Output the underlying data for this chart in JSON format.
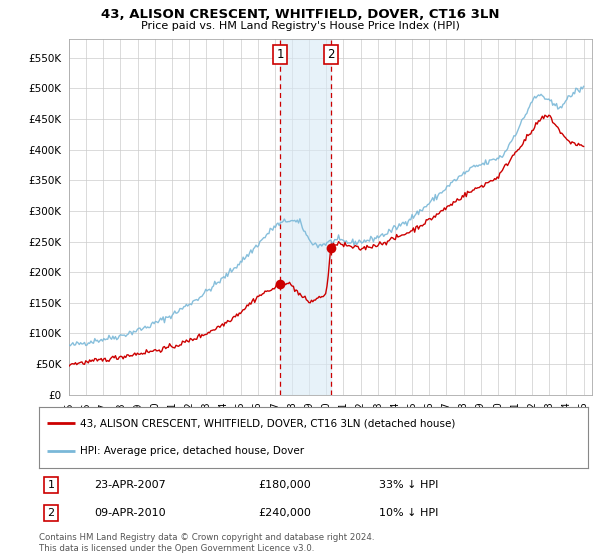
{
  "title": "43, ALISON CRESCENT, WHITFIELD, DOVER, CT16 3LN",
  "subtitle": "Price paid vs. HM Land Registry's House Price Index (HPI)",
  "legend_line1": "43, ALISON CRESCENT, WHITFIELD, DOVER, CT16 3LN (detached house)",
  "legend_line2": "HPI: Average price, detached house, Dover",
  "footnote": "Contains HM Land Registry data © Crown copyright and database right 2024.\nThis data is licensed under the Open Government Licence v3.0.",
  "sale1_date": "23-APR-2007",
  "sale1_price": "£180,000",
  "sale1_hpi": "33% ↓ HPI",
  "sale2_date": "09-APR-2010",
  "sale2_price": "£240,000",
  "sale2_hpi": "10% ↓ HPI",
  "sale1_year": 2007.3,
  "sale1_value": 180000,
  "sale2_year": 2010.27,
  "sale2_value": 240000,
  "hpi_color": "#7ab8d8",
  "sale_color": "#cc0000",
  "highlight_color": "#d8eaf5",
  "highlight_alpha": 0.6,
  "ylim": [
    0,
    580000
  ],
  "yticks": [
    0,
    50000,
    100000,
    150000,
    200000,
    250000,
    300000,
    350000,
    400000,
    450000,
    500000,
    550000
  ],
  "xlim_start": 1995.0,
  "xlim_end": 2025.5,
  "background_color": "#ffffff",
  "grid_color": "#cccccc",
  "box_border_color": "#cc0000"
}
